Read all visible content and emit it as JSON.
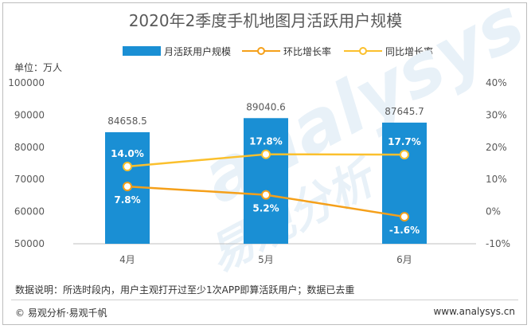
{
  "title": "2020年2季度手机地图月活跃用户规模",
  "unit": "单位：万人",
  "note": "数据说明：所选时段内，用户主观打开过至少1次APP即算活跃用户；数据已去重",
  "copyright": "© 易观分析·易观千帆",
  "website": "www.analysys.cn",
  "watermark": {
    "brand": "analysys",
    "cn": "易观分析"
  },
  "colors": {
    "bar": "#1a8fd4",
    "mom": "#f5a01a",
    "yoy": "#fbc02d"
  },
  "chart_data": {
    "type": "bar",
    "categories": [
      "4月",
      "5月",
      "6月"
    ],
    "series": [
      {
        "name": "月活跃用户规模",
        "type": "bar",
        "axis": "left",
        "values": [
          84658.5,
          89040.6,
          87645.7
        ],
        "labels": [
          "84658.5",
          "89040.6",
          "87645.7"
        ]
      },
      {
        "name": "环比增长率",
        "type": "line",
        "axis": "right",
        "values": [
          7.8,
          5.2,
          -1.6
        ],
        "labels": [
          "7.8%",
          "5.2%",
          "-1.6%"
        ]
      },
      {
        "name": "同比增长率",
        "type": "line",
        "axis": "right",
        "values": [
          14.0,
          17.8,
          17.7
        ],
        "labels": [
          "14.0%",
          "17.8%",
          "17.7%"
        ]
      }
    ],
    "ylim_left": [
      50000,
      100000
    ],
    "yticks_left": [
      "100000",
      "90000",
      "80000",
      "70000",
      "60000",
      "50000"
    ],
    "ylim_right": [
      -10,
      40
    ],
    "yticks_right": [
      "40%",
      "30%",
      "20%",
      "10%",
      "0%",
      "-10%"
    ],
    "legend_position": "top",
    "grid": false
  }
}
